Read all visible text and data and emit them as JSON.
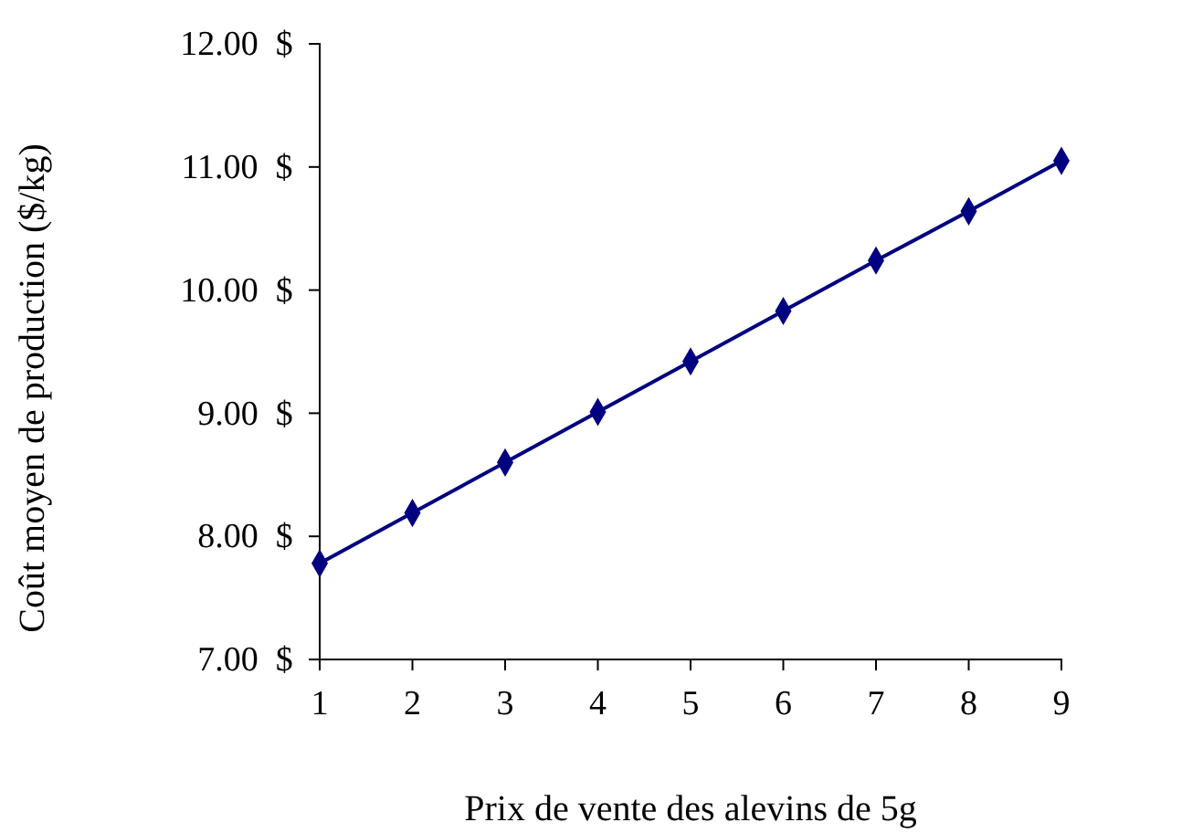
{
  "chart_data": {
    "type": "line",
    "xlabel": "Prix de vente des alevins de 5g",
    "ylabel": "Coût moyen de production ($/kg)",
    "x": [
      1,
      2,
      3,
      4,
      5,
      6,
      7,
      8,
      9
    ],
    "series": [
      {
        "color": "#000080",
        "values": [
          7.78,
          8.19,
          8.6,
          9.01,
          9.42,
          9.83,
          10.24,
          10.64,
          11.05
        ]
      }
    ],
    "xlim": [
      1,
      9
    ],
    "xticks": [
      1,
      2,
      3,
      4,
      5,
      6,
      7,
      8,
      9
    ],
    "ylim": [
      7,
      12
    ],
    "yticks": [
      {
        "value": 7,
        "label": "7.00  $"
      },
      {
        "value": 8,
        "label": "8.00  $"
      },
      {
        "value": 9,
        "label": "9.00  $"
      },
      {
        "value": 10,
        "label": "10.00  $"
      },
      {
        "value": 11,
        "label": "11.00  $"
      },
      {
        "value": 12,
        "label": "12.00  $"
      }
    ],
    "marker": "diamond",
    "line_style": "solid",
    "grid": false
  }
}
